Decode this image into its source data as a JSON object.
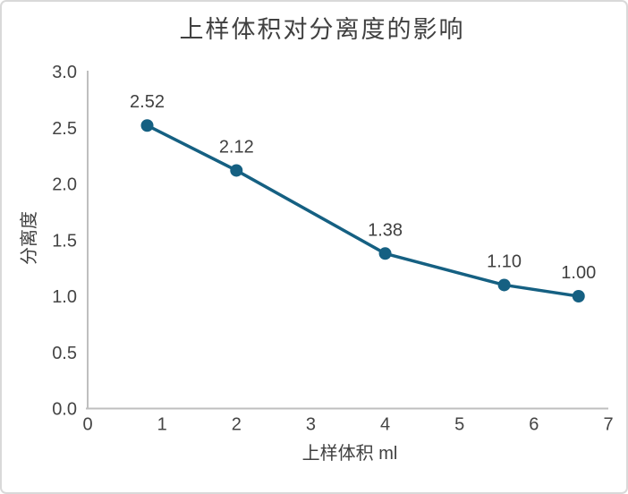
{
  "chart_data": {
    "type": "line",
    "title": "上样体积对分离度的影响",
    "xlabel": "上样体积 ml",
    "ylabel": "分离度",
    "x": [
      0.8,
      2,
      4,
      5.6,
      6.6
    ],
    "values": [
      2.52,
      2.12,
      1.38,
      1.1,
      1.0
    ],
    "point_labels": [
      "2.52",
      "2.12",
      "1.38",
      "1.10",
      "1.00"
    ],
    "series_name": "分离度",
    "xlim": [
      0,
      7
    ],
    "ylim": [
      0,
      3
    ],
    "x_tick_values": [
      0,
      1,
      2,
      3,
      4,
      5,
      6,
      7
    ],
    "x_tick_labels": [
      "0",
      "1",
      "2",
      "3",
      "4",
      "5",
      "6",
      "7"
    ],
    "y_tick_values": [
      0,
      0.5,
      1,
      1.5,
      2,
      2.5,
      3
    ],
    "y_tick_labels": [
      "0.0",
      "0.5",
      "1.0",
      "1.5",
      "2.0",
      "2.5",
      "3.0"
    ],
    "grid": false,
    "legend": "none",
    "marker": "circle"
  },
  "theme": {
    "accent": "#156082",
    "axis_line": "#bfbfbf",
    "text": "#404040",
    "tick_text": "#444444",
    "border": "#d9d9d9",
    "background": "#ffffff"
  }
}
